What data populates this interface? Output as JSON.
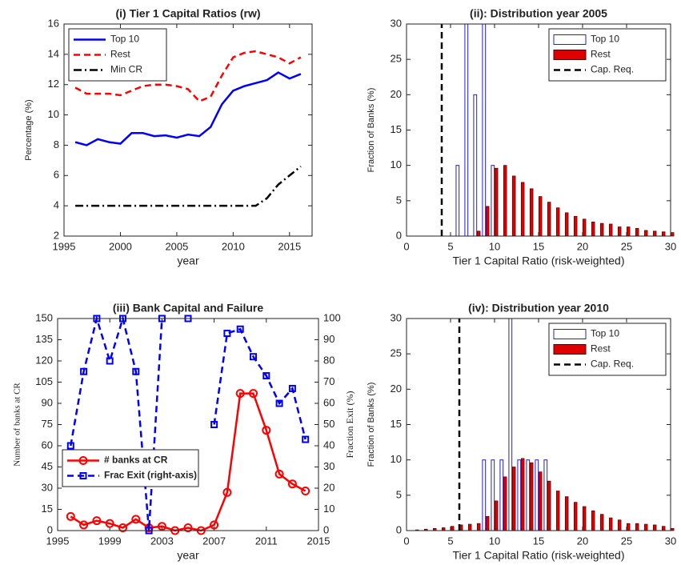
{
  "chart_data": [
    {
      "type": "line",
      "title": "(i) Tier 1 Capital Ratios (rw)",
      "xlabel": "year",
      "ylabel": "Percentage (%)",
      "x": [
        1996,
        1997,
        1998,
        1999,
        2000,
        2001,
        2002,
        2003,
        2004,
        2005,
        2006,
        2007,
        2008,
        2009,
        2010,
        2011,
        2012,
        2013,
        2014,
        2015,
        2016
      ],
      "series": [
        {
          "name": "Top 10",
          "color": "#0000ff",
          "dash": "solid",
          "values": [
            8.2,
            8.0,
            8.4,
            8.2,
            8.1,
            8.8,
            8.8,
            8.6,
            8.65,
            8.5,
            8.7,
            8.6,
            9.2,
            10.7,
            11.6,
            11.9,
            12.1,
            12.3,
            12.8,
            12.4,
            12.7
          ]
        },
        {
          "name": "Rest",
          "color": "#ff0000",
          "dash": "dashed",
          "values": [
            11.8,
            11.4,
            11.4,
            11.4,
            11.3,
            11.6,
            11.9,
            12.0,
            12.0,
            11.9,
            11.7,
            10.9,
            11.2,
            12.6,
            13.8,
            14.1,
            14.2,
            14.0,
            13.8,
            13.4,
            13.8
          ]
        },
        {
          "name": "Min CR",
          "color": "#000000",
          "dash": "dashdot",
          "values": [
            4,
            4,
            4,
            4,
            4,
            4,
            4,
            4,
            4,
            4,
            4,
            4,
            4,
            4,
            4,
            4,
            4,
            4.5,
            5.4,
            6.0,
            6.6
          ]
        }
      ],
      "xlim": [
        1995,
        2017
      ],
      "xticks": [
        1995,
        2000,
        2005,
        2010,
        2015
      ],
      "ylim": [
        2,
        16
      ],
      "yticks": [
        2,
        4,
        6,
        8,
        10,
        12,
        14,
        16
      ],
      "grid": false,
      "legend": "upper left"
    },
    {
      "type": "bar",
      "title": "(ii): Distribution year 2005",
      "xlabel": "Tier 1 Capital Ratio (risk-weighted)",
      "ylabel": "Fraction of Banks (%)",
      "x": [
        1,
        2,
        3,
        4,
        5,
        6,
        7,
        8,
        9,
        10,
        11,
        12,
        13,
        14,
        15,
        16,
        17,
        18,
        19,
        20,
        21,
        22,
        23,
        24,
        25,
        26,
        27,
        28,
        29,
        30
      ],
      "series": [
        {
          "name": "Top 10",
          "color": "#2020d0",
          "hollow": true,
          "values": [
            0,
            0,
            0,
            0,
            0,
            10,
            30,
            20,
            30,
            10,
            0,
            0,
            0,
            0,
            0,
            0,
            0,
            0,
            0,
            0,
            0,
            0,
            0,
            0,
            0,
            0,
            0,
            0,
            0,
            0
          ]
        },
        {
          "name": "Rest",
          "color": "#e00000",
          "hollow": false,
          "values": [
            0,
            0,
            0,
            0,
            0,
            0,
            0,
            0.7,
            4.2,
            9.6,
            10,
            8.5,
            7.6,
            6.7,
            5.6,
            4.8,
            4.0,
            3.3,
            2.8,
            2.4,
            2.0,
            1.8,
            1.7,
            1.3,
            1.3,
            1.1,
            0.8,
            0.7,
            0.6,
            0.5
          ]
        }
      ],
      "vline": {
        "name": "Cap. Req.",
        "value": 4,
        "color": "#000000",
        "dash": "dashed"
      },
      "xlim": [
        0,
        30
      ],
      "xticks": [
        0,
        5,
        10,
        15,
        20,
        25,
        30
      ],
      "ylim": [
        0,
        30
      ],
      "yticks": [
        0,
        5,
        10,
        15,
        20,
        25,
        30
      ],
      "grid": false,
      "legend": "upper right"
    },
    {
      "type": "line",
      "title": "(iii) Bank Capital and Failure",
      "xlabel": "year",
      "ylabel": "Number of banks at CR",
      "y2label": "Fraction Exit (%)",
      "x": [
        1996,
        1997,
        1998,
        1999,
        2000,
        2001,
        2002,
        2003,
        2004,
        2005,
        2006,
        2007,
        2008,
        2009,
        2010,
        2011,
        2012,
        2013,
        2014
      ],
      "series": [
        {
          "name": "# banks at CR",
          "color": "#ff0000",
          "dash": "solid",
          "marker": "circle",
          "values": [
            10,
            4,
            7,
            5,
            2,
            8,
            2,
            3,
            0,
            2,
            0,
            4,
            27,
            97,
            97,
            71,
            40,
            33,
            28
          ]
        },
        {
          "name": "Frac Exit (right-axis)",
          "color": "#0000ff",
          "dash": "dashed",
          "marker": "square",
          "axis": "y2",
          "values": [
            40,
            75,
            100,
            80,
            100,
            75,
            0,
            100,
            null,
            100,
            null,
            50,
            93,
            95,
            82,
            73,
            60,
            67,
            43
          ]
        }
      ],
      "xlim": [
        1995,
        2015
      ],
      "xticks": [
        1995,
        1999,
        2003,
        2007,
        2011,
        2015
      ],
      "ylim": [
        0,
        150
      ],
      "yticks": [
        0,
        15,
        30,
        45,
        60,
        75,
        90,
        105,
        120,
        135,
        150
      ],
      "y2lim": [
        0,
        100
      ],
      "y2ticks": [
        0,
        10,
        20,
        30,
        40,
        50,
        60,
        70,
        80,
        90,
        100
      ],
      "grid": false,
      "legend": "lower left"
    },
    {
      "type": "bar",
      "title": "(iv): Distribution year 2010",
      "xlabel": "Tier 1 Capital Ratio (risk-weighted)",
      "ylabel": "Fraction of Banks (%)",
      "x": [
        1,
        2,
        3,
        4,
        5,
        6,
        7,
        8,
        9,
        10,
        11,
        12,
        13,
        14,
        15,
        16,
        17,
        18,
        19,
        20,
        21,
        22,
        23,
        24,
        25,
        26,
        27,
        28,
        29,
        30
      ],
      "series": [
        {
          "name": "Top 10",
          "color": "#2020d0",
          "hollow": true,
          "values": [
            0,
            0,
            0,
            0,
            0,
            0,
            0,
            0,
            10,
            10,
            10,
            30,
            10,
            10,
            10,
            10,
            0,
            0,
            0,
            0,
            0,
            0,
            0,
            0,
            0,
            0,
            0,
            0,
            0,
            0
          ]
        },
        {
          "name": "Rest",
          "color": "#e00000",
          "hollow": false,
          "values": [
            0.1,
            0.2,
            0.3,
            0.4,
            0.6,
            0.8,
            0.9,
            1.0,
            2.0,
            4.2,
            7.6,
            9.0,
            10.2,
            9.6,
            8.3,
            7.0,
            5.6,
            4.8,
            4.0,
            3.4,
            2.8,
            2.3,
            1.8,
            1.5,
            1.0,
            1.0,
            0.9,
            0.8,
            0.6,
            0.3
          ]
        }
      ],
      "vline": {
        "name": "Cap. Req.",
        "value": 6,
        "color": "#000000",
        "dash": "dashed"
      },
      "xlim": [
        0,
        30
      ],
      "xticks": [
        0,
        5,
        10,
        15,
        20,
        25,
        30
      ],
      "ylim": [
        0,
        30
      ],
      "yticks": [
        0,
        5,
        10,
        15,
        20,
        25,
        30
      ],
      "grid": false,
      "legend": "upper right"
    }
  ]
}
